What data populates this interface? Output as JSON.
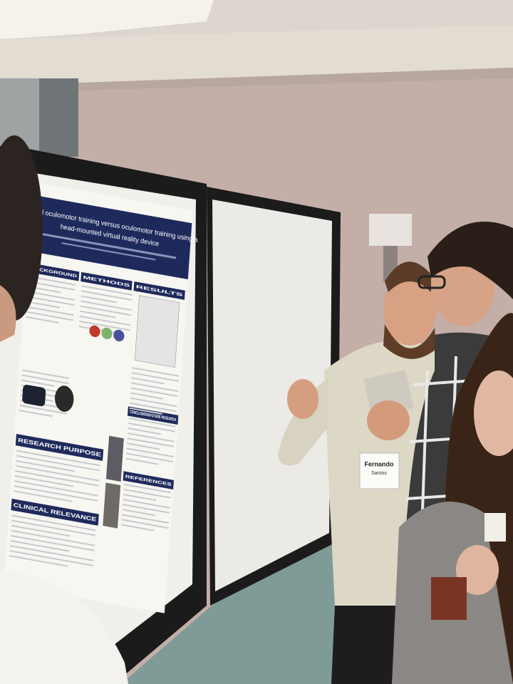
{
  "poster": {
    "title_lines": [
      "Clinical oculomotor training versus oculomotor training using a",
      "head-mounted virtual reality device"
    ],
    "sections": [
      "BACKGROUND",
      "METHODS",
      "RESULTS",
      "RESEARCH PURPOSE",
      "CLINICAL RELEVANCE",
      "CONCLUSIONS/FUTURE RESEARCH",
      "REFERENCES"
    ]
  },
  "badge": {
    "first_name": "Fernando",
    "last_name": "Santos"
  }
}
